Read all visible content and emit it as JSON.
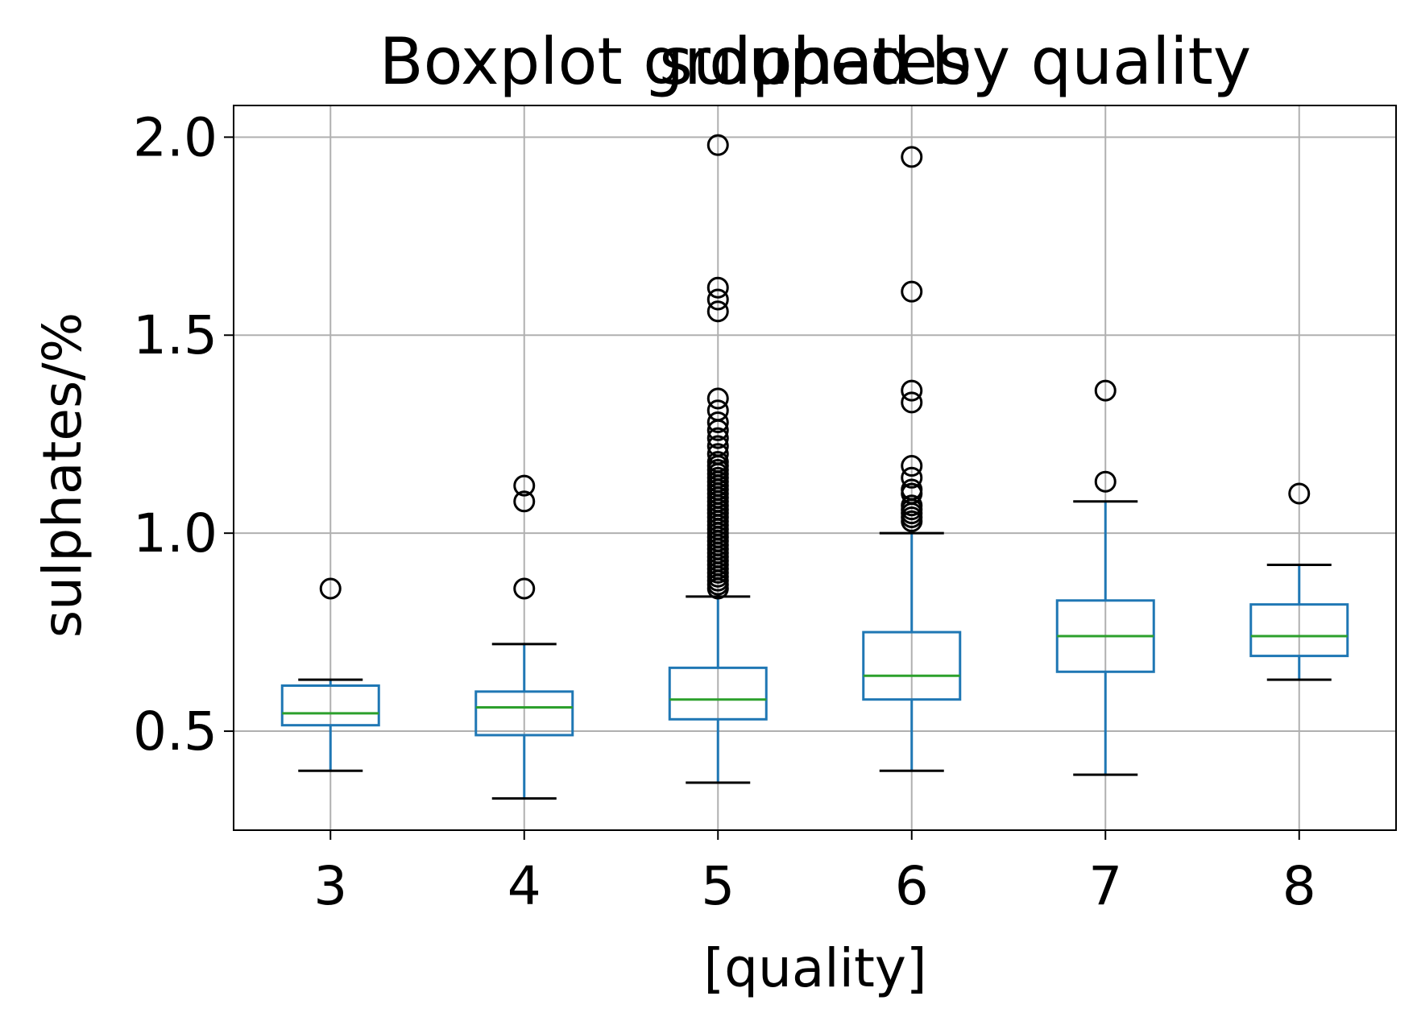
{
  "chart_data": {
    "type": "box",
    "suptitle": "Boxplot grouped by quality",
    "title": "sulphates",
    "xlabel": "[quality]",
    "ylabel": "sulphates/%",
    "ylim": [
      0.25,
      2.08
    ],
    "yticks": [
      0.5,
      1.0,
      1.5,
      2.0
    ],
    "ytick_labels": [
      "0.5",
      "1.0",
      "1.5",
      "2.0"
    ],
    "grid": true,
    "colors": {
      "box": "#1f77b4",
      "median": "#2ca02c",
      "whisker": "#1f77b4",
      "cap": "#000000",
      "flier": "#000000",
      "grid": "#b0b0b0"
    },
    "categories": [
      "3",
      "4",
      "5",
      "6",
      "7",
      "8"
    ],
    "boxes": [
      {
        "category": "3",
        "whisker_low": 0.4,
        "q1": 0.515,
        "median": 0.545,
        "q3": 0.615,
        "whisker_high": 0.63,
        "outliers": [
          0.86
        ]
      },
      {
        "category": "4",
        "whisker_low": 0.33,
        "q1": 0.49,
        "median": 0.56,
        "q3": 0.6,
        "whisker_high": 0.72,
        "outliers": [
          0.86,
          1.08,
          1.12
        ]
      },
      {
        "category": "5",
        "whisker_low": 0.37,
        "q1": 0.53,
        "median": 0.58,
        "q3": 0.66,
        "whisker_high": 0.84,
        "outliers": [
          0.86,
          0.87,
          0.88,
          0.89,
          0.9,
          0.91,
          0.92,
          0.93,
          0.94,
          0.95,
          0.96,
          0.97,
          0.98,
          0.99,
          1.0,
          1.01,
          1.02,
          1.03,
          1.04,
          1.05,
          1.06,
          1.07,
          1.08,
          1.09,
          1.1,
          1.11,
          1.12,
          1.13,
          1.14,
          1.15,
          1.16,
          1.17,
          1.18,
          1.2,
          1.22,
          1.24,
          1.26,
          1.28,
          1.31,
          1.34,
          1.56,
          1.59,
          1.62,
          1.98
        ]
      },
      {
        "category": "6",
        "whisker_low": 0.4,
        "q1": 0.58,
        "median": 0.64,
        "q3": 0.75,
        "whisker_high": 1.0,
        "outliers": [
          1.03,
          1.04,
          1.05,
          1.06,
          1.07,
          1.1,
          1.11,
          1.14,
          1.17,
          1.33,
          1.36,
          1.61,
          1.95
        ]
      },
      {
        "category": "7",
        "whisker_low": 0.39,
        "q1": 0.65,
        "median": 0.74,
        "q3": 0.83,
        "whisker_high": 1.08,
        "outliers": [
          1.13,
          1.36
        ]
      },
      {
        "category": "8",
        "whisker_low": 0.63,
        "q1": 0.69,
        "median": 0.74,
        "q3": 0.82,
        "whisker_high": 0.92,
        "outliers": [
          1.1
        ]
      }
    ]
  }
}
